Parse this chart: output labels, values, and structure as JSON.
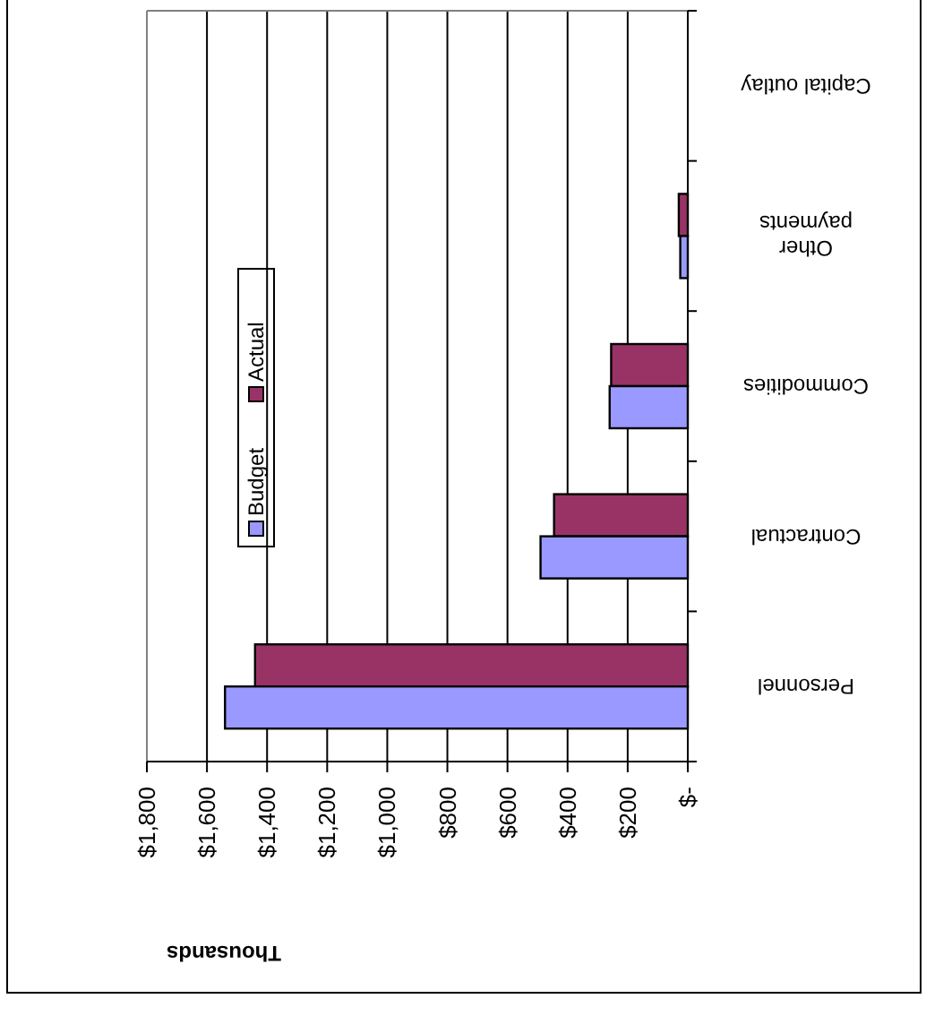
{
  "chart_data": {
    "type": "bar",
    "orientation": "horizontal",
    "xlabel": "Thousands",
    "categories": [
      "Capital outlay",
      "Other payments",
      "Commodities",
      "Contractual",
      "Personnel"
    ],
    "series": [
      {
        "name": "Actual",
        "color": "#993366",
        "values": [
          null,
          30,
          255,
          445,
          1440
        ]
      },
      {
        "name": "Budget",
        "color": "#9999ff",
        "values": [
          null,
          25,
          260,
          490,
          1540
        ]
      }
    ],
    "xlim": [
      1800,
      0
    ],
    "xticks": [
      {
        "value": 1800,
        "label": "$1,800"
      },
      {
        "value": 1600,
        "label": "$1,600"
      },
      {
        "value": 1400,
        "label": "$1,400"
      },
      {
        "value": 1200,
        "label": "$1,200"
      },
      {
        "value": 1000,
        "label": "$1,000"
      },
      {
        "value": 800,
        "label": "$800"
      },
      {
        "value": 600,
        "label": "$600"
      },
      {
        "value": 400,
        "label": "$400"
      },
      {
        "value": 200,
        "label": "$200"
      },
      {
        "value": 0,
        "label": "$-"
      }
    ],
    "grid": "x",
    "legend": "left"
  }
}
